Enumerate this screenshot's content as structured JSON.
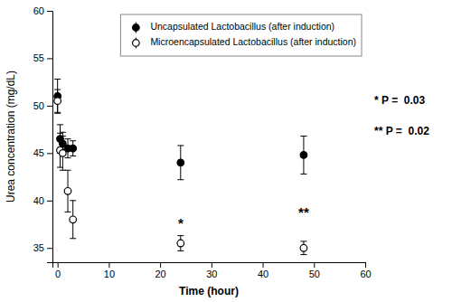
{
  "chart_data": {
    "type": "scatter",
    "xlabel": "Time (hour)",
    "ylabel": "Urea concentration (mg/dL)",
    "xlim": [
      -1,
      60
    ],
    "ylim": [
      33.5,
      60
    ],
    "xticks": [
      0,
      10,
      20,
      30,
      40,
      50,
      60
    ],
    "yticks": [
      35,
      40,
      45,
      50,
      55,
      60
    ],
    "grid": false,
    "legend": "upper right",
    "series": [
      {
        "name": "Uncapsulated Lactobacillus (after induction)",
        "color": "black",
        "marker": "circle",
        "x": [
          0,
          0.5,
          1,
          2,
          3,
          24,
          48
        ],
        "values": [
          51.0,
          46.5,
          46.0,
          45.5,
          45.5,
          44.0,
          44.8
        ],
        "errors": [
          1.8,
          1.5,
          1.2,
          1.0,
          0.8,
          1.8,
          2.0
        ]
      },
      {
        "name": "Microencapsulated Lactobacillus (after induction)",
        "color": "black",
        "marker": "open-circle",
        "x": [
          0,
          0.5,
          1,
          2,
          3,
          24,
          48
        ],
        "values": [
          50.5,
          45.3,
          45.0,
          41.0,
          38.0,
          35.5,
          35.0
        ],
        "errors": [
          1.2,
          1.8,
          1.8,
          2.2,
          2.0,
          0.8,
          0.7
        ]
      }
    ],
    "annotations": [
      {
        "text": "*",
        "x": 24,
        "y": 38.2
      },
      {
        "text": "**",
        "x": 48,
        "y": 39.3
      },
      {
        "text": "* P =  0.03"
      },
      {
        "text": "** P =  0.02"
      }
    ]
  }
}
